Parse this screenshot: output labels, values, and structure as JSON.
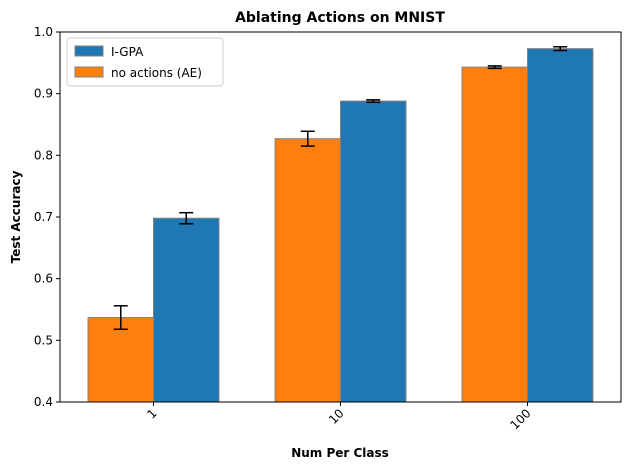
{
  "chart_data": {
    "type": "bar",
    "title": "Ablating Actions on MNIST",
    "xlabel": "Num Per Class",
    "ylabel": "Test Accuracy",
    "categories": [
      "1",
      "10",
      "100"
    ],
    "ylim": [
      0.4,
      1.0
    ],
    "yticks": [
      "0.4",
      "0.5",
      "0.6",
      "0.7",
      "0.8",
      "0.9",
      "1.0"
    ],
    "grid": false,
    "legend_position": "top-left",
    "series": [
      {
        "name": "no actions (AE)",
        "color": "#ff7f0e",
        "values": [
          0.537,
          0.827,
          0.943
        ],
        "errors": [
          0.019,
          0.012,
          0.002
        ]
      },
      {
        "name": "I-GPA",
        "color": "#1f77b4",
        "values": [
          0.698,
          0.888,
          0.973
        ],
        "errors": [
          0.009,
          0.002,
          0.003
        ]
      }
    ],
    "legend_order": [
      1,
      0
    ]
  }
}
